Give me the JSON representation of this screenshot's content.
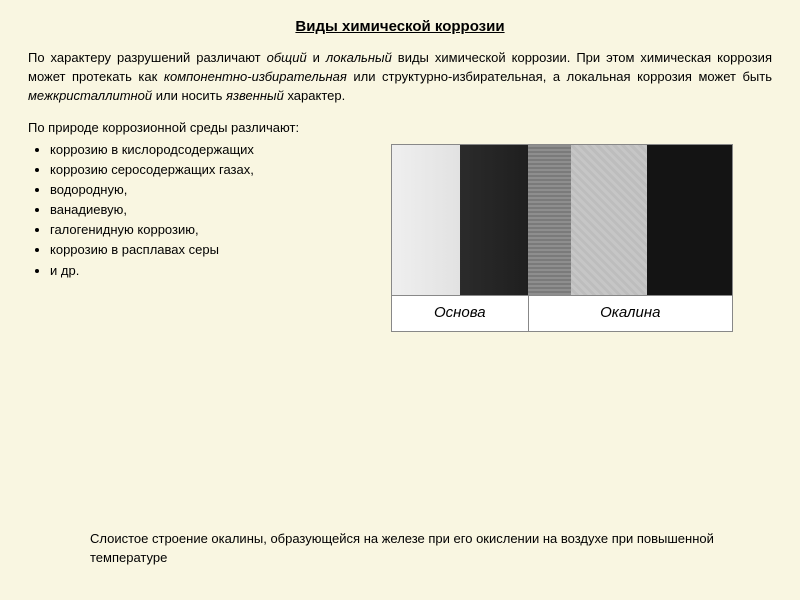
{
  "title": "Виды химической коррозии",
  "intro": {
    "p1a": "По характеру разрушений различают ",
    "i1": "общий",
    "p1b": " и ",
    "i2": "локальный",
    "p1c": " виды химической коррозии. При этом химическая коррозия может протекать как ",
    "i3": "компонентно-избирательная",
    "p1d": " или структурно-избирательная, а локальная коррозия может быть ",
    "i4": "межкристаллитной",
    "p1e": " или носить ",
    "i5": "язвенный",
    "p1f": " характер."
  },
  "list_intro": "По природе коррозионной среды различают:",
  "list": [
    "коррозию в кислородсодержащих",
    "коррозию серосодержащих газах,",
    "водородную,",
    "ванадиевую,",
    "галогенидную коррозию,",
    "коррозию в расплавах серы",
    "и др."
  ],
  "figure": {
    "label_left": "Основа",
    "label_right": "Окалина",
    "strip_colors": [
      "#e8e8e8",
      "#222222",
      "#828282",
      "#c4c4c4",
      "#141414"
    ]
  },
  "caption": "Слоистое строение окалины, образующейся на железе при его окислении на воздухе при повышенной температуре"
}
